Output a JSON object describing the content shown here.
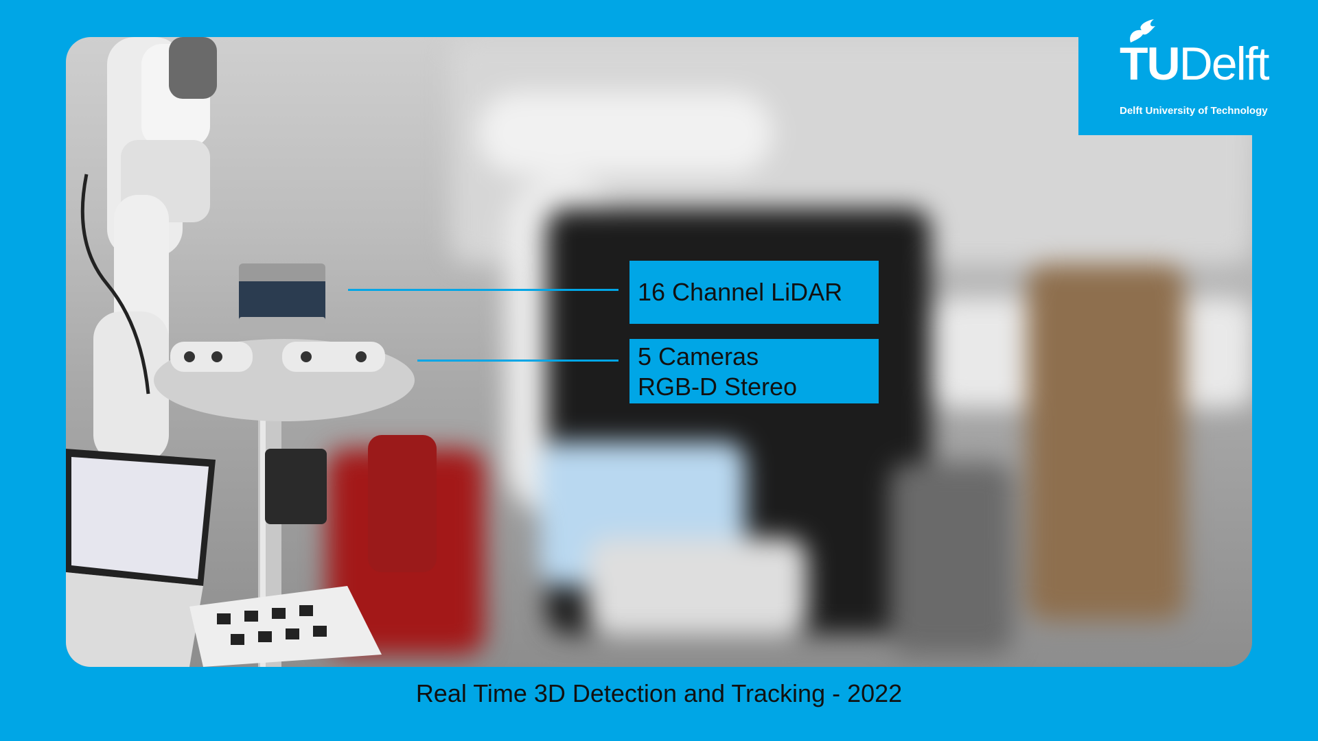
{
  "logo": {
    "wordmark_bold": "TU",
    "wordmark_regular": "Delft",
    "tagline": "Delft University of Technology"
  },
  "callouts": {
    "lidar": [
      "16 Channel LiDAR"
    ],
    "cameras": [
      "5 Cameras",
      "RGB-D Stereo"
    ]
  },
  "caption": "Real Time 3D Detection and Tracking - 2022",
  "colors": {
    "background": "#00a6e6",
    "logo_text": "#ffffff",
    "caption_text": "#111111"
  },
  "icons": {
    "logo_flame": "flame-icon"
  }
}
